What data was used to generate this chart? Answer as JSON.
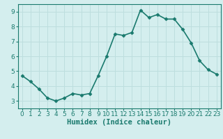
{
  "x": [
    0,
    1,
    2,
    3,
    4,
    5,
    6,
    7,
    8,
    9,
    10,
    11,
    12,
    13,
    14,
    15,
    16,
    17,
    18,
    19,
    20,
    21,
    22,
    23
  ],
  "y": [
    4.7,
    4.3,
    3.8,
    3.2,
    3.0,
    3.2,
    3.5,
    3.4,
    3.5,
    4.7,
    6.0,
    7.5,
    7.4,
    7.6,
    9.1,
    8.6,
    8.8,
    8.5,
    8.5,
    7.8,
    6.9,
    5.7,
    5.1,
    4.8
  ],
  "xlabel": "Humidex (Indice chaleur)",
  "line_color": "#1a7a6e",
  "bg_color": "#d4eeee",
  "grid_color": "#bddede",
  "ylim": [
    2.5,
    9.5
  ],
  "xlim": [
    -0.5,
    23.5
  ],
  "yticks": [
    3,
    4,
    5,
    6,
    7,
    8,
    9
  ],
  "xticks": [
    0,
    1,
    2,
    3,
    4,
    5,
    6,
    7,
    8,
    9,
    10,
    11,
    12,
    13,
    14,
    15,
    16,
    17,
    18,
    19,
    20,
    21,
    22,
    23
  ],
  "marker": "D",
  "markersize": 2.5,
  "linewidth": 1.2,
  "tick_fontsize": 6.5,
  "xlabel_fontsize": 7.5
}
